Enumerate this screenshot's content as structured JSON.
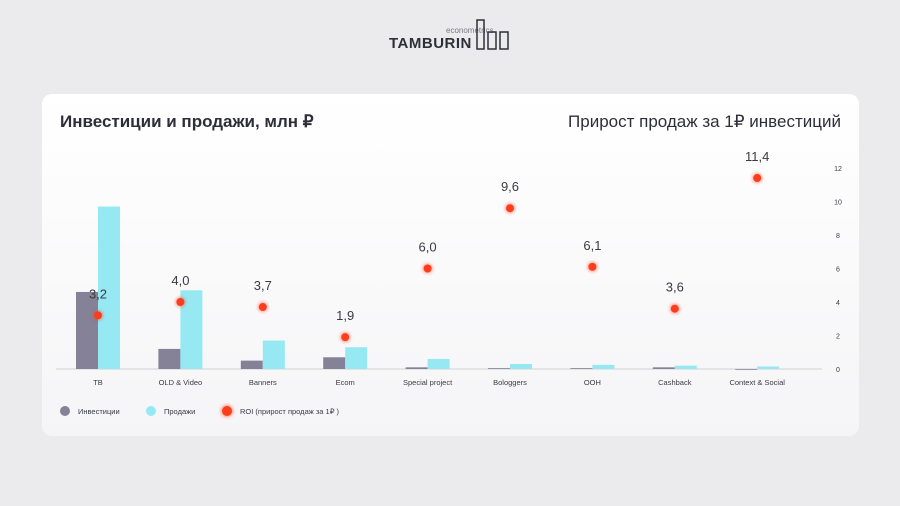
{
  "logo": {
    "sub": "econometrics",
    "brand": "TAMBURIN"
  },
  "titles": {
    "left": "Инвестиции и продажи, млн ₽",
    "right": "Прирост продаж за 1₽ инвестиций"
  },
  "colors": {
    "investments": "#858196",
    "sales": "#96e9f3",
    "roi": "#ff3d1c"
  },
  "chart_data": {
    "type": "bar",
    "categories": [
      "ТВ",
      "OLD & Video",
      "Banners",
      "Ecom",
      "Special project",
      "Bologgers",
      "OOH",
      "Cashback",
      "Context & Social"
    ],
    "series": [
      {
        "name": "Инвестиции",
        "type": "bar",
        "values": [
          4.6,
          1.2,
          0.5,
          0.7,
          0.1,
          0.05,
          0.05,
          0.1,
          0
        ]
      },
      {
        "name": "Продажи",
        "type": "bar",
        "values": [
          9.7,
          4.7,
          1.7,
          1.3,
          0.6,
          0.3,
          0.25,
          0.2,
          0.15
        ]
      },
      {
        "name": "ROI (прирост продаж за 1₽ )",
        "type": "scatter",
        "values": [
          3.2,
          4.0,
          3.7,
          1.9,
          6.0,
          9.6,
          6.1,
          3.6,
          11.4
        ],
        "labels": [
          "3,2",
          "4,0",
          "3,7",
          "1,9",
          "6,0",
          "9,6",
          "6,1",
          "3,6",
          "11,4"
        ]
      }
    ],
    "y2_ticks": [
      "0",
      "2",
      "4",
      "6",
      "8",
      "10",
      "12"
    ],
    "ylim": [
      0,
      12
    ],
    "grid": false,
    "legend": "bottom-left"
  }
}
